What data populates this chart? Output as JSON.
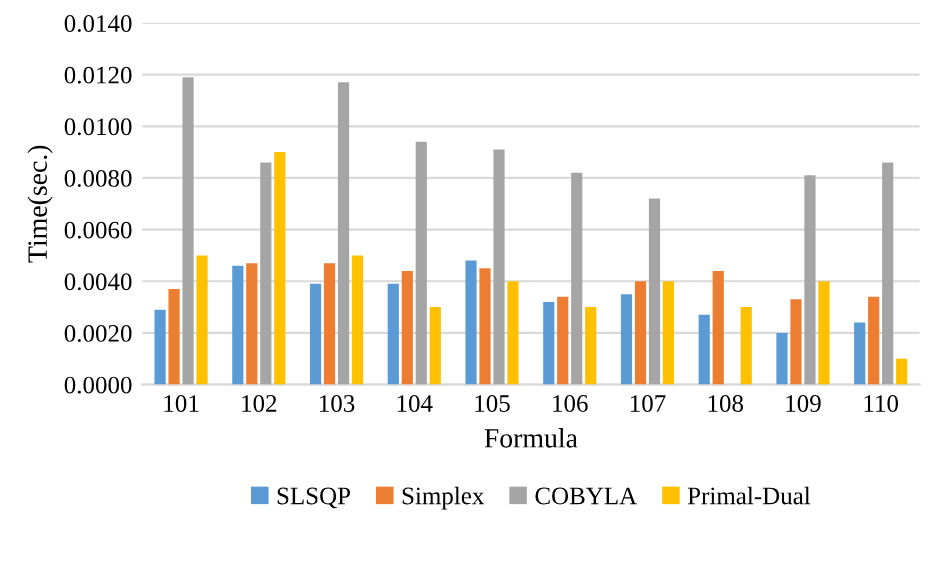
{
  "chart_data": {
    "type": "bar",
    "xlabel": "Formula",
    "ylabel": "Time(sec.)",
    "categories": [
      "101",
      "102",
      "103",
      "104",
      "105",
      "106",
      "107",
      "108",
      "109",
      "110"
    ],
    "series": [
      {
        "name": "SLSQP",
        "color": "#5b9bd5",
        "values": [
          0.0029,
          0.0046,
          0.0039,
          0.0039,
          0.0048,
          0.0032,
          0.0035,
          0.0027,
          0.002,
          0.0024
        ]
      },
      {
        "name": "Simplex",
        "color": "#ed7d31",
        "values": [
          0.0037,
          0.0047,
          0.0047,
          0.0044,
          0.0045,
          0.0034,
          0.004,
          0.0044,
          0.0033,
          0.0034
        ]
      },
      {
        "name": "COBYLA",
        "color": "#a5a5a5",
        "values": [
          0.0119,
          0.0086,
          0.0117,
          0.0094,
          0.0091,
          0.0082,
          0.0072,
          null,
          0.0081,
          0.0086
        ]
      },
      {
        "name": "Primal-Dual",
        "color": "#ffc000",
        "values": [
          0.005,
          0.009,
          0.005,
          0.003,
          0.004,
          0.003,
          0.004,
          0.003,
          0.004,
          0.001
        ]
      }
    ],
    "ylim": [
      0,
      0.014
    ],
    "yticks": [
      {
        "value": 0,
        "label": "0.0000"
      },
      {
        "value": 0.002,
        "label": "0.0020"
      },
      {
        "value": 0.004,
        "label": "0.0040"
      },
      {
        "value": 0.006,
        "label": "0.0060"
      },
      {
        "value": 0.008,
        "label": "0.0080"
      },
      {
        "value": 0.01,
        "label": "0.0100"
      },
      {
        "value": 0.012,
        "label": "0.0120"
      },
      {
        "value": 0.014,
        "label": "0.0140"
      }
    ],
    "grid": "y",
    "legend": "bottom"
  }
}
